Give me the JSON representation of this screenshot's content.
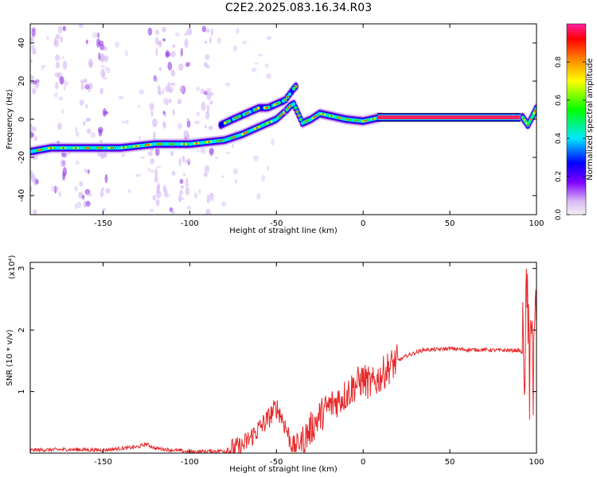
{
  "title": "C2E2.2025.083.16.34.R03",
  "chart_data": [
    {
      "type": "heatmap",
      "xlabel": "Height of straight line (km)",
      "ylabel": "Frequency (Hz)",
      "xlim": [
        -192,
        100
      ],
      "ylim": [
        -50,
        50
      ],
      "xticks": [
        -150,
        -100,
        -50,
        0,
        50,
        100
      ],
      "yticks": [
        -40,
        -20,
        0,
        20,
        40
      ],
      "colorbar": {
        "label": "Normalized spectral amplitude",
        "range": [
          0,
          1
        ],
        "ticks": [
          0.0,
          0.2,
          0.4,
          0.6,
          0.8
        ],
        "tick_labels": [
          "0.0",
          "0.2",
          "0.4",
          "0.6",
          "0.8"
        ]
      },
      "ridge": {
        "x": [
          -192,
          -180,
          -170,
          -160,
          -150,
          -140,
          -130,
          -120,
          -110,
          -100,
          -90,
          -80,
          -70,
          -60,
          -50,
          -44,
          -42,
          -40,
          -35,
          -30,
          -25,
          -20,
          -10,
          0,
          10,
          20,
          40,
          60,
          80,
          92,
          95,
          98,
          100
        ],
        "y": [
          -17,
          -15,
          -15,
          -15,
          -15,
          -15,
          -14,
          -13,
          -13,
          -13,
          -12,
          -11,
          -8,
          -4,
          0,
          5,
          7,
          8,
          -2,
          0,
          3,
          2,
          0,
          -1,
          1,
          1,
          1,
          1,
          1,
          1,
          -3,
          2,
          6
        ]
      },
      "upper_branch": {
        "x": [
          -82,
          -75,
          -70,
          -65,
          -60,
          -55,
          -50,
          -45,
          -40,
          -38
        ],
        "y": [
          -3,
          0,
          2,
          4,
          6,
          6,
          8,
          10,
          16,
          18
        ]
      },
      "noise_columns_x": [
        -190,
        -175,
        -160,
        -150,
        -120,
        -112,
        -103,
        -90
      ]
    },
    {
      "type": "line",
      "xlabel": "Height of straight line (km)",
      "ylabel": "SNR (10 * v/v)",
      "y_multiplier": "(x10⁴)",
      "xlim": [
        -192,
        100
      ],
      "ylim": [
        0,
        3.1
      ],
      "xticks": [
        -150,
        -100,
        -50,
        0,
        50,
        100
      ],
      "yticks": [
        1,
        2,
        3
      ],
      "color": "#e8282a",
      "x": [
        -192,
        -170,
        -150,
        -130,
        -125,
        -120,
        -100,
        -80,
        -70,
        -65,
        -60,
        -55,
        -50,
        -48,
        -45,
        -42,
        -40,
        -38,
        -35,
        -30,
        -25,
        -20,
        -15,
        -10,
        -5,
        0,
        5,
        10,
        15,
        20,
        25,
        30,
        35,
        40,
        50,
        60,
        70,
        80,
        90,
        93,
        95,
        96,
        97,
        98,
        100
      ],
      "y": [
        0.05,
        0.06,
        0.05,
        0.1,
        0.15,
        0.08,
        0.02,
        0.04,
        0.1,
        0.25,
        0.4,
        0.55,
        0.75,
        0.65,
        0.45,
        0.2,
        0.1,
        0.15,
        0.2,
        0.4,
        0.6,
        0.75,
        0.85,
        0.95,
        1.1,
        1.2,
        1.1,
        1.25,
        1.4,
        1.5,
        1.58,
        1.63,
        1.68,
        1.68,
        1.7,
        1.68,
        1.68,
        1.67,
        1.67,
        1.6,
        2.6,
        0.5,
        3.1,
        1.0,
        2.5
      ]
    }
  ]
}
